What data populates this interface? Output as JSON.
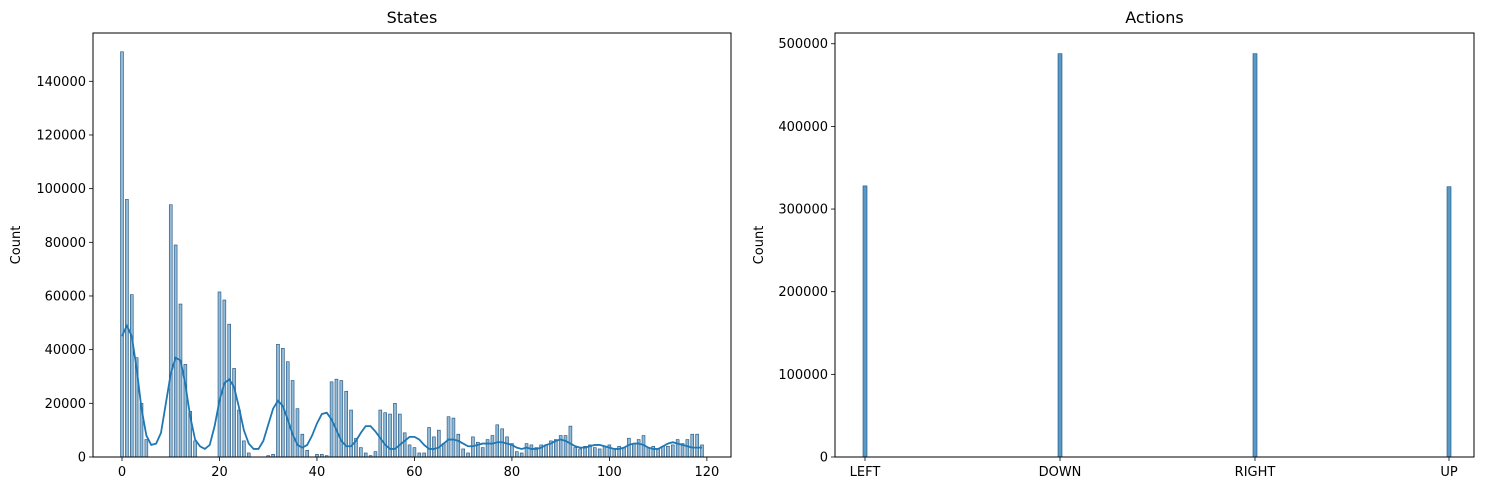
{
  "chart_data": [
    {
      "type": "bar",
      "title": "States",
      "xlabel": "",
      "ylabel": "Count",
      "xlim": [
        -5.95,
        124.95
      ],
      "ylim": [
        0,
        158000
      ],
      "xticks": [
        0,
        20,
        40,
        60,
        80,
        100,
        120
      ],
      "yticks": [
        0,
        20000,
        40000,
        60000,
        80000,
        100000,
        120000,
        140000
      ],
      "bin_width": 0.6,
      "bars": [
        [
          0,
          151000
        ],
        [
          1,
          96000
        ],
        [
          2,
          60500
        ],
        [
          3,
          37000
        ],
        [
          4,
          20000
        ],
        [
          5,
          6500
        ],
        [
          10,
          94000
        ],
        [
          11,
          79000
        ],
        [
          12,
          57000
        ],
        [
          13,
          34500
        ],
        [
          14,
          17000
        ],
        [
          15,
          6000
        ],
        [
          20,
          61500
        ],
        [
          21,
          58500
        ],
        [
          22,
          49500
        ],
        [
          23,
          33000
        ],
        [
          24,
          17500
        ],
        [
          25,
          6000
        ],
        [
          26,
          1500
        ],
        [
          30,
          500
        ],
        [
          31,
          1000
        ],
        [
          32,
          42000
        ],
        [
          33,
          40500
        ],
        [
          34,
          35500
        ],
        [
          35,
          28500
        ],
        [
          36,
          18000
        ],
        [
          37,
          8500
        ],
        [
          38,
          2500
        ],
        [
          40,
          1000
        ],
        [
          41,
          1000
        ],
        [
          42,
          500
        ],
        [
          43,
          28000
        ],
        [
          44,
          29000
        ],
        [
          45,
          28500
        ],
        [
          46,
          24500
        ],
        [
          47,
          17500
        ],
        [
          48,
          7000
        ],
        [
          49,
          3500
        ],
        [
          50,
          1500
        ],
        [
          51,
          500
        ],
        [
          52,
          2000
        ],
        [
          53,
          17500
        ],
        [
          54,
          16500
        ],
        [
          55,
          16000
        ],
        [
          56,
          20000
        ],
        [
          57,
          16000
        ],
        [
          58,
          9000
        ],
        [
          59,
          4500
        ],
        [
          60,
          3500
        ],
        [
          61,
          1500
        ],
        [
          62,
          1500
        ],
        [
          63,
          11000
        ],
        [
          64,
          7500
        ],
        [
          65,
          10000
        ],
        [
          66,
          5000
        ],
        [
          67,
          15000
        ],
        [
          68,
          14500
        ],
        [
          69,
          8500
        ],
        [
          70,
          3000
        ],
        [
          71,
          1500
        ],
        [
          72,
          7500
        ],
        [
          73,
          5500
        ],
        [
          74,
          3500
        ],
        [
          75,
          6500
        ],
        [
          76,
          8000
        ],
        [
          77,
          12000
        ],
        [
          78,
          10500
        ],
        [
          79,
          7500
        ],
        [
          80,
          5000
        ],
        [
          81,
          2000
        ],
        [
          82,
          1500
        ],
        [
          83,
          5000
        ],
        [
          84,
          4500
        ],
        [
          85,
          3500
        ],
        [
          86,
          4500
        ],
        [
          87,
          4500
        ],
        [
          88,
          6000
        ],
        [
          89,
          6500
        ],
        [
          90,
          8000
        ],
        [
          91,
          8000
        ],
        [
          92,
          11500
        ],
        [
          93,
          3500
        ],
        [
          94,
          3000
        ],
        [
          95,
          4000
        ],
        [
          96,
          4500
        ],
        [
          97,
          3500
        ],
        [
          98,
          3000
        ],
        [
          99,
          4000
        ],
        [
          100,
          4500
        ],
        [
          101,
          3000
        ],
        [
          102,
          4000
        ],
        [
          103,
          3500
        ],
        [
          104,
          7000
        ],
        [
          105,
          5000
        ],
        [
          106,
          6500
        ],
        [
          107,
          8000
        ],
        [
          108,
          3500
        ],
        [
          109,
          4000
        ],
        [
          110,
          3000
        ],
        [
          111,
          4000
        ],
        [
          112,
          4000
        ],
        [
          113,
          4500
        ],
        [
          114,
          6500
        ],
        [
          115,
          5000
        ],
        [
          116,
          6500
        ],
        [
          117,
          8500
        ],
        [
          118,
          8500
        ],
        [
          119,
          4500
        ]
      ],
      "kde": [
        [
          0,
          45000
        ],
        [
          1,
          49000
        ],
        [
          2,
          45000
        ],
        [
          3,
          33000
        ],
        [
          4,
          18000
        ],
        [
          5,
          8000
        ],
        [
          6,
          4500
        ],
        [
          7,
          5000
        ],
        [
          8,
          9000
        ],
        [
          9,
          20000
        ],
        [
          10,
          31000
        ],
        [
          11,
          37000
        ],
        [
          12,
          36000
        ],
        [
          13,
          27000
        ],
        [
          14,
          15000
        ],
        [
          15,
          6500
        ],
        [
          16,
          4000
        ],
        [
          17,
          3000
        ],
        [
          18,
          4500
        ],
        [
          19,
          11500
        ],
        [
          20,
          21000
        ],
        [
          21,
          27500
        ],
        [
          22,
          29000
        ],
        [
          23,
          26000
        ],
        [
          24,
          18500
        ],
        [
          25,
          10000
        ],
        [
          26,
          5000
        ],
        [
          27,
          3000
        ],
        [
          28,
          3000
        ],
        [
          29,
          6000
        ],
        [
          30,
          12000
        ],
        [
          31,
          18000
        ],
        [
          32,
          21000
        ],
        [
          33,
          19000
        ],
        [
          34,
          14000
        ],
        [
          35,
          8500
        ],
        [
          36,
          4500
        ],
        [
          37,
          3500
        ],
        [
          38,
          4500
        ],
        [
          39,
          8000
        ],
        [
          40,
          12500
        ],
        [
          41,
          16000
        ],
        [
          42,
          16500
        ],
        [
          43,
          14000
        ],
        [
          44,
          10000
        ],
        [
          45,
          6000
        ],
        [
          46,
          4000
        ],
        [
          47,
          4000
        ],
        [
          48,
          6000
        ],
        [
          49,
          9000
        ],
        [
          50,
          11500
        ],
        [
          51,
          11500
        ],
        [
          52,
          9500
        ],
        [
          53,
          7000
        ],
        [
          54,
          4500
        ],
        [
          55,
          3000
        ],
        [
          56,
          3000
        ],
        [
          57,
          4500
        ],
        [
          58,
          6000
        ],
        [
          59,
          7500
        ],
        [
          60,
          7500
        ],
        [
          61,
          6500
        ],
        [
          62,
          4500
        ],
        [
          63,
          3000
        ],
        [
          64,
          3000
        ],
        [
          65,
          3500
        ],
        [
          66,
          5000
        ],
        [
          67,
          6500
        ],
        [
          68,
          6500
        ],
        [
          69,
          6000
        ],
        [
          70,
          5000
        ],
        [
          71,
          4000
        ],
        [
          72,
          4000
        ],
        [
          73,
          4500
        ],
        [
          74,
          5000
        ],
        [
          75,
          5000
        ],
        [
          76,
          5000
        ],
        [
          77,
          5500
        ],
        [
          78,
          5500
        ],
        [
          79,
          5000
        ],
        [
          80,
          4500
        ],
        [
          81,
          3500
        ],
        [
          82,
          3000
        ],
        [
          83,
          3500
        ],
        [
          84,
          3000
        ],
        [
          85,
          3000
        ],
        [
          86,
          3500
        ],
        [
          87,
          4500
        ],
        [
          88,
          5000
        ],
        [
          89,
          6000
        ],
        [
          90,
          6500
        ],
        [
          91,
          6000
        ],
        [
          92,
          5000
        ],
        [
          93,
          4000
        ],
        [
          94,
          3500
        ],
        [
          95,
          3500
        ],
        [
          96,
          4000
        ],
        [
          97,
          4500
        ],
        [
          98,
          4500
        ],
        [
          99,
          4000
        ],
        [
          100,
          3500
        ],
        [
          101,
          3000
        ],
        [
          102,
          3000
        ],
        [
          103,
          3500
        ],
        [
          104,
          4500
        ],
        [
          105,
          5000
        ],
        [
          106,
          5000
        ],
        [
          107,
          4500
        ],
        [
          108,
          3500
        ],
        [
          109,
          3000
        ],
        [
          110,
          3000
        ],
        [
          111,
          4000
        ],
        [
          112,
          5000
        ],
        [
          113,
          5500
        ],
        [
          114,
          5000
        ],
        [
          115,
          4500
        ],
        [
          116,
          4000
        ],
        [
          117,
          3500
        ],
        [
          118,
          3500
        ],
        [
          119,
          3500
        ]
      ]
    },
    {
      "type": "bar",
      "title": "Actions",
      "xlabel": "",
      "ylabel": "Count",
      "ylim": [
        0,
        513000
      ],
      "yticks": [
        0,
        100000,
        200000,
        300000,
        400000,
        500000
      ],
      "categories": [
        "LEFT",
        "DOWN",
        "RIGHT",
        "UP"
      ],
      "values": [
        328000,
        488000,
        488000,
        327000
      ]
    }
  ]
}
